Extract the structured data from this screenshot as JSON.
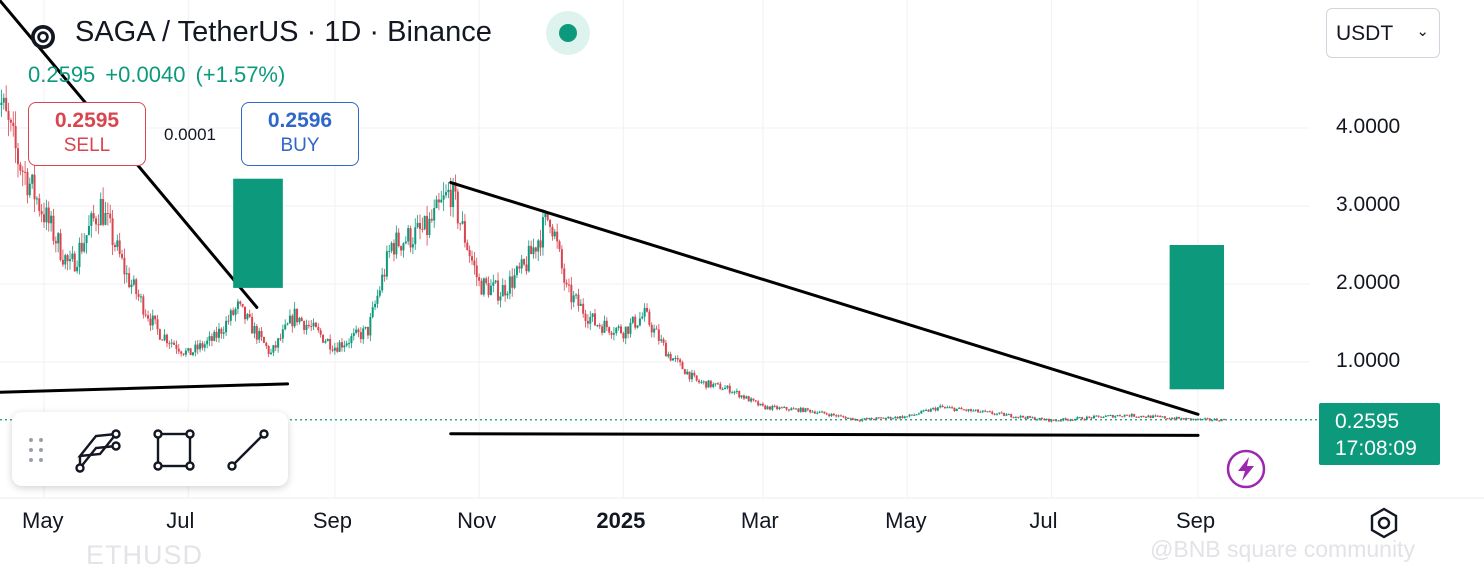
{
  "header": {
    "title": "SAGA / TetherUS · 1D · Binance",
    "last": "0.2595",
    "change": "+0.0040",
    "change_pct": "(+1.57%)"
  },
  "trade": {
    "sell_price": "0.2595",
    "sell_label": "SELL",
    "spread": "0.0001",
    "buy_price": "0.2596",
    "buy_label": "BUY"
  },
  "currency": {
    "value": "USDT"
  },
  "price_tag": {
    "price": "0.2595",
    "countdown": "17:08:09"
  },
  "colors": {
    "up": "#0d9a7c",
    "down": "#d8454f",
    "buy": "#2e66c9",
    "accent_purple": "#9c27b0"
  },
  "icons": [
    "saga-logo-icon",
    "live-dot-icon",
    "chevron-down-icon",
    "drag-grip-icon",
    "parallel-channel-icon",
    "rectangle-tool-icon",
    "trend-line-tool-icon",
    "lightning-icon",
    "settings-icon"
  ],
  "watermark": "@BNB square community",
  "ghost_text": "ETHUSD",
  "chart_data": {
    "type": "candlestick",
    "y_axis": {
      "ticks": [
        1,
        2,
        3,
        4
      ],
      "tick_labels": [
        "1.0000",
        "2.0000",
        "3.0000",
        "4.0000"
      ],
      "range": [
        -0.3,
        5.2
      ]
    },
    "x_axis": {
      "labels": [
        {
          "text": "May",
          "date": "2024-05-01"
        },
        {
          "text": "Jul",
          "date": "2024-07-01"
        },
        {
          "text": "Sep",
          "date": "2024-09-01"
        },
        {
          "text": "Nov",
          "date": "2024-11-01"
        },
        {
          "text": "2025",
          "date": "2025-01-01",
          "bold": true
        },
        {
          "text": "Mar",
          "date": "2025-03-01"
        },
        {
          "text": "May",
          "date": "2025-05-01"
        },
        {
          "text": "Jul",
          "date": "2025-07-01"
        },
        {
          "text": "Sep",
          "date": "2025-09-01"
        }
      ]
    },
    "grid": true,
    "close_path": [
      [
        "2024-04-10",
        4.6
      ],
      [
        "2024-04-20",
        3.6
      ],
      [
        "2024-05-01",
        2.9
      ],
      [
        "2024-05-12",
        2.2
      ],
      [
        "2024-05-25",
        3.0
      ],
      [
        "2024-06-05",
        2.1
      ],
      [
        "2024-06-18",
        1.4
      ],
      [
        "2024-07-01",
        1.1
      ],
      [
        "2024-07-12",
        1.3
      ],
      [
        "2024-07-22",
        1.7
      ],
      [
        "2024-08-05",
        1.1
      ],
      [
        "2024-08-15",
        1.6
      ],
      [
        "2024-09-01",
        1.2
      ],
      [
        "2024-09-15",
        1.4
      ],
      [
        "2024-09-25",
        2.5
      ],
      [
        "2024-10-10",
        2.7
      ],
      [
        "2024-10-20",
        3.2
      ],
      [
        "2024-11-01",
        2.0
      ],
      [
        "2024-11-10",
        1.9
      ],
      [
        "2024-11-20",
        2.2
      ],
      [
        "2024-12-01",
        2.9
      ],
      [
        "2024-12-08",
        1.9
      ],
      [
        "2024-12-20",
        1.5
      ],
      [
        "2025-01-01",
        1.4
      ],
      [
        "2025-01-10",
        1.6
      ],
      [
        "2025-01-20",
        1.1
      ],
      [
        "2025-02-01",
        0.75
      ],
      [
        "2025-02-15",
        0.65
      ],
      [
        "2025-03-01",
        0.42
      ],
      [
        "2025-03-20",
        0.38
      ],
      [
        "2025-04-10",
        0.26
      ],
      [
        "2025-05-01",
        0.3
      ],
      [
        "2025-05-15",
        0.42
      ],
      [
        "2025-06-01",
        0.36
      ],
      [
        "2025-07-01",
        0.25
      ],
      [
        "2025-08-01",
        0.32
      ],
      [
        "2025-09-01",
        0.26
      ],
      [
        "2025-09-12",
        0.2595
      ]
    ],
    "drawings": [
      {
        "type": "trendline",
        "points": [
          [
            "2024-04-05",
            5.9
          ],
          [
            "2024-07-30",
            1.7
          ]
        ]
      },
      {
        "type": "trendline",
        "points": [
          [
            "2024-03-30",
            0.6
          ],
          [
            "2024-08-12",
            0.72
          ]
        ]
      },
      {
        "type": "trendline",
        "points": [
          [
            "2024-10-20",
            3.3
          ],
          [
            "2025-09-01",
            0.33
          ]
        ]
      },
      {
        "type": "trendline",
        "points": [
          [
            "2024-10-20",
            0.08
          ],
          [
            "2025-09-01",
            0.06
          ]
        ]
      },
      {
        "type": "box",
        "from": [
          "2024-07-20",
          1.95
        ],
        "to": [
          "2024-08-10",
          3.35
        ]
      },
      {
        "type": "box",
        "from": [
          "2025-08-20",
          0.65
        ],
        "to": [
          "2025-09-12",
          2.5
        ]
      }
    ]
  }
}
